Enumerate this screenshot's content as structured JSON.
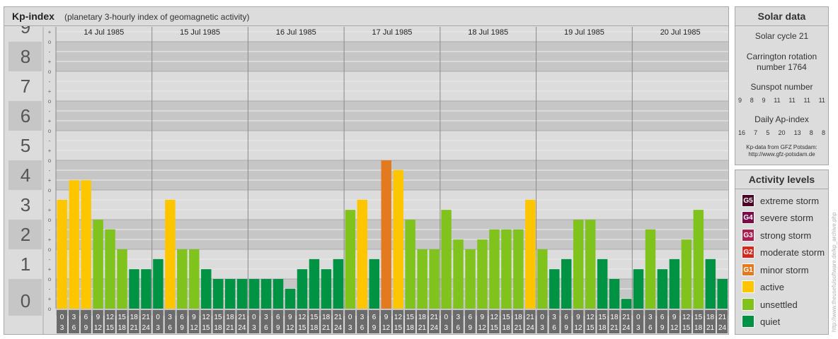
{
  "header": {
    "title": "Kp-index",
    "subtitle": "(planetary 3-hourly index of geomagnetic activity)"
  },
  "chart_data": {
    "type": "bar",
    "y_tick_labels": [
      "0",
      "1",
      "2",
      "3",
      "4",
      "5",
      "6",
      "7",
      "8",
      "9"
    ],
    "minor_tick_labels": [
      "o",
      "+",
      "-"
    ],
    "ylim": [
      0,
      9.33
    ],
    "grid": true,
    "days": [
      "14 Jul 1985",
      "15 Jul 1985",
      "16 Jul 1985",
      "17 Jul 1985",
      "18 Jul 1985",
      "19 Jul 1985",
      "20 Jul 1985"
    ],
    "slot_top": [
      "0",
      "3",
      "6",
      "9",
      "12",
      "15",
      "18",
      "21"
    ],
    "slot_bottom": [
      "3",
      "6",
      "9",
      "12",
      "15",
      "18",
      "21",
      "24"
    ],
    "values": [
      [
        3.67,
        4.33,
        4.33,
        3.0,
        2.67,
        2.0,
        1.33,
        1.33
      ],
      [
        1.67,
        3.67,
        2.0,
        2.0,
        1.33,
        1.0,
        1.0,
        1.0
      ],
      [
        1.0,
        1.0,
        1.0,
        0.67,
        1.33,
        1.67,
        1.33,
        1.67
      ],
      [
        3.33,
        3.67,
        1.67,
        5.0,
        4.67,
        3.0,
        2.0,
        2.0
      ],
      [
        3.33,
        2.33,
        2.0,
        2.33,
        2.67,
        2.67,
        2.67,
        3.67
      ],
      [
        2.0,
        1.33,
        1.67,
        3.0,
        3.0,
        1.67,
        1.0,
        0.33
      ],
      [
        1.33,
        2.67,
        1.33,
        1.67,
        2.33,
        3.33,
        1.67,
        1.0
      ]
    ]
  },
  "colors": {
    "quiet": "#009344",
    "unsettled": "#80c31c",
    "active": "#fec601",
    "minor_storm": "#e47a1f",
    "moderate_storm": "#d9261d",
    "strong_storm": "#b01b4f",
    "severe_storm": "#7b0c49",
    "extreme_storm": "#4a0626"
  },
  "solar": {
    "title": "Solar data",
    "cycle": "Solar cycle 21",
    "carrington_1": "Carrington rotation",
    "carrington_2": "number 1764",
    "sunspot_label": "Sunspot number",
    "sunspots": [
      "9",
      "8",
      "9",
      "11",
      "11",
      "11",
      "11"
    ],
    "ap_label": "Daily Ap-index",
    "ap": [
      "16",
      "7",
      "5",
      "20",
      "13",
      "8",
      "8"
    ],
    "source_1": "Kp-data from GFZ Potsdam:",
    "source_2": "http://www.gfz-potsdam.de"
  },
  "levels": {
    "title": "Activity levels",
    "items": [
      {
        "code": "G5",
        "label": "extreme storm",
        "color": "#4a0626"
      },
      {
        "code": "G4",
        "label": "severe storm",
        "color": "#7b0c49"
      },
      {
        "code": "G3",
        "label": "strong storm",
        "color": "#b01b4f"
      },
      {
        "code": "G2",
        "label": "moderate storm",
        "color": "#d9261d"
      },
      {
        "code": "G1",
        "label": "minor storm",
        "color": "#e47a1f"
      },
      {
        "code": "",
        "label": "active",
        "color": "#fec601"
      },
      {
        "code": "",
        "label": "unsettled",
        "color": "#80c31c"
      },
      {
        "code": "",
        "label": "quiet",
        "color": "#009344"
      }
    ]
  },
  "watermark": "http://www.theusefulsoftware.de/kp_archive.php"
}
